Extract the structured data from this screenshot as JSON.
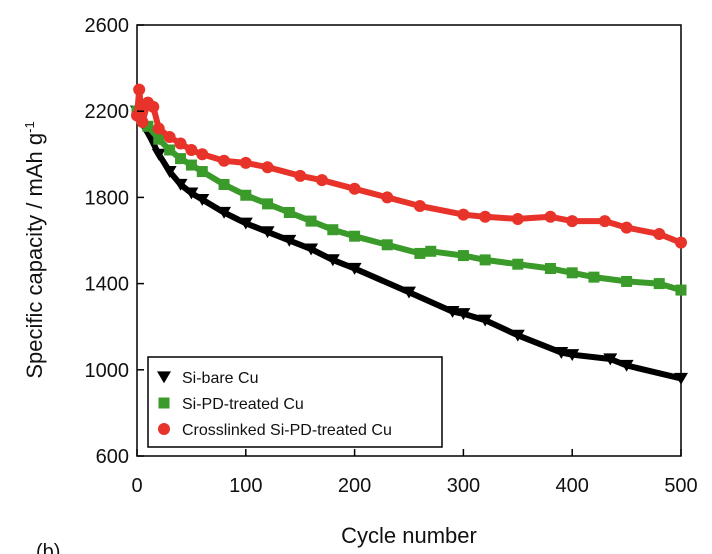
{
  "panel_label": "(b)",
  "chart_data": {
    "type": "scatter",
    "title": "",
    "xlabel": "Cycle number",
    "ylabel_main": "Specific capacity / mAh g",
    "ylabel_sup": "-1",
    "xlim": [
      0,
      500
    ],
    "ylim": [
      600,
      2600
    ],
    "xticks": [
      0,
      100,
      200,
      300,
      400,
      500
    ],
    "yticks": [
      600,
      1000,
      1400,
      1800,
      2200,
      2600
    ],
    "grid": false,
    "legend_position": "bottom-left",
    "series": [
      {
        "name": "Si-bare Cu",
        "marker": "triangle-down",
        "color": "#000000",
        "x": [
          0,
          10,
          20,
          30,
          40,
          50,
          60,
          80,
          100,
          120,
          140,
          160,
          180,
          200,
          250,
          290,
          300,
          320,
          350,
          390,
          400,
          435,
          450,
          500
        ],
        "y": [
          2200,
          2100,
          2000,
          1920,
          1860,
          1820,
          1790,
          1730,
          1680,
          1640,
          1600,
          1560,
          1510,
          1470,
          1360,
          1270,
          1260,
          1230,
          1160,
          1080,
          1070,
          1050,
          1020,
          960
        ]
      },
      {
        "name": "Si-PD-treated Cu",
        "marker": "square",
        "color": "#3a9a2a",
        "x": [
          0,
          10,
          20,
          30,
          40,
          50,
          60,
          80,
          100,
          120,
          140,
          160,
          180,
          200,
          230,
          260,
          270,
          300,
          320,
          350,
          380,
          400,
          420,
          450,
          480,
          500
        ],
        "y": [
          2200,
          2130,
          2070,
          2020,
          1980,
          1950,
          1920,
          1860,
          1810,
          1770,
          1730,
          1690,
          1650,
          1620,
          1580,
          1540,
          1550,
          1530,
          1510,
          1490,
          1470,
          1450,
          1430,
          1410,
          1400,
          1370
        ]
      },
      {
        "name": "Crosslinked Si-PD-treated Cu",
        "marker": "circle",
        "color": "#e8332a",
        "x": [
          0,
          2,
          5,
          10,
          15,
          20,
          30,
          40,
          50,
          60,
          80,
          100,
          120,
          150,
          170,
          200,
          230,
          260,
          300,
          320,
          350,
          380,
          400,
          430,
          450,
          480,
          500
        ],
        "y": [
          2180,
          2300,
          2150,
          2240,
          2220,
          2120,
          2080,
          2050,
          2020,
          2000,
          1970,
          1960,
          1940,
          1900,
          1880,
          1840,
          1800,
          1760,
          1720,
          1710,
          1700,
          1710,
          1690,
          1690,
          1660,
          1630,
          1590
        ]
      }
    ]
  }
}
